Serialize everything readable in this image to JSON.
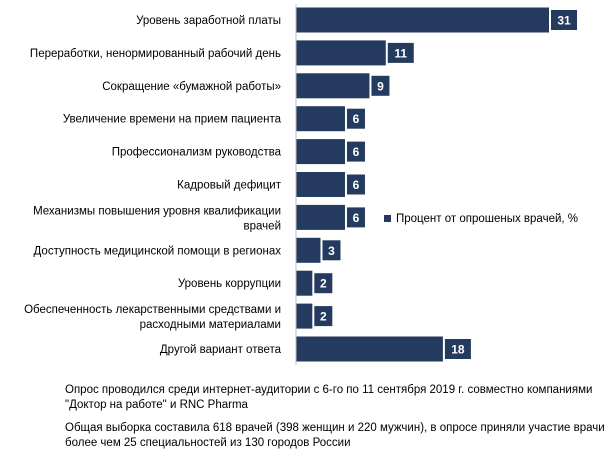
{
  "chart_data": {
    "type": "bar",
    "orientation": "horizontal",
    "categories": [
      "Уровень заработной платы",
      "Переработки, ненормированный рабочий день",
      "Сокращение «бумажной работы»",
      "Увеличение времени на прием пациента",
      "Профессионализм руководства",
      "Кадровый дефицит",
      "Механизмы повышения уровня квалификации врачей",
      "Доступность медицинской помощи в регионах",
      "Уровень коррупции",
      "Обеспеченность лекарственными средствами и расходными материалами",
      "Другой вариант ответа"
    ],
    "series": [
      {
        "name": "Процент от опрошеных врачей, %",
        "values": [
          31,
          11,
          9,
          6,
          6,
          6,
          6,
          3,
          2,
          2,
          18
        ],
        "color": "#243a5e"
      }
    ],
    "data_labels": true,
    "legend_position": "right",
    "grid": false,
    "xlim": [
      0,
      31
    ]
  },
  "notes": [
    "Опрос проводился среди интернет-аудитории с 6-го по 11 сентября 2019 г. совместно компаниями \"Доктор на работе\" и RNC Pharma",
    "Общая выборка составила 618 врачей (398 женщин и 220 мужчин), в опросе приняли участие врачи более чем 25 специальностей из 130 городов России"
  ]
}
